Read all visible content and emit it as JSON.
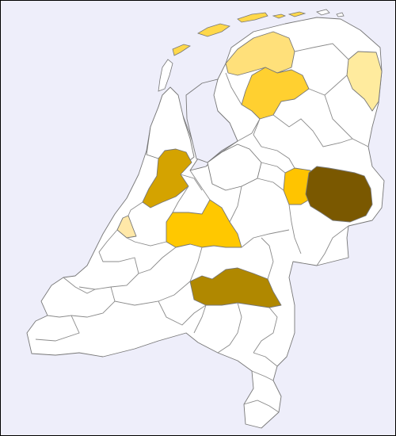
{
  "map": {
    "background": "#eeeefa",
    "land_color": "#ffffff",
    "outline_color": "#777777",
    "legend": [],
    "highlighted_regions": [
      {
        "id": "wadden-islands",
        "color": "#ffd84a",
        "level": 0.45
      },
      {
        "id": "groningen-north",
        "color": "#ffe07a",
        "level": 0.35
      },
      {
        "id": "friesland-east",
        "color": "#ffd030",
        "level": 0.5
      },
      {
        "id": "drenthe-east",
        "color": "#ffeb9e",
        "level": 0.25
      },
      {
        "id": "noord-holland-south",
        "color": "#d4a300",
        "level": 0.7
      },
      {
        "id": "zuid-holland-west",
        "color": "#ffe8a8",
        "level": 0.2
      },
      {
        "id": "utrecht",
        "color": "#ffc800",
        "level": 0.6
      },
      {
        "id": "gelderland-west",
        "color": "#ffc400",
        "level": 0.6
      },
      {
        "id": "twente",
        "color": "#7a5800",
        "level": 1.0
      },
      {
        "id": "noord-brabant-east",
        "color": "#b08800",
        "level": 0.85
      }
    ]
  }
}
